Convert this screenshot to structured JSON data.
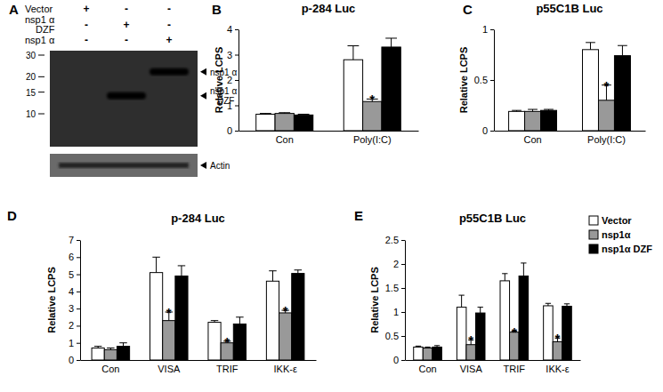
{
  "blot": {
    "panel": "A",
    "conditions": [
      {
        "label": [
          "Vector"
        ],
        "lanes": [
          "+",
          "-",
          "-"
        ]
      },
      {
        "label": [
          "nsp1 α",
          "DZF"
        ],
        "lanes": [
          "-",
          "+",
          "-"
        ]
      },
      {
        "label": [
          "nsp1 α"
        ],
        "lanes": [
          "-",
          "-",
          "+"
        ]
      }
    ],
    "markers": [
      30,
      20,
      15,
      10
    ],
    "bands": [
      {
        "label": [
          "nsp1 α"
        ],
        "lane": 2,
        "kda": 22
      },
      {
        "label": [
          "nsp1 α",
          "DZF"
        ],
        "lane": 1,
        "kda": 14
      }
    ],
    "loading": {
      "label": "Actin"
    }
  },
  "chart_data": [
    {
      "type": "bar",
      "panel": "B",
      "title": "p-284 Luc",
      "ylabel": "Relative LCPS",
      "categories": [
        "Con",
        "Poly(I:C)"
      ],
      "ylim": [
        0,
        4
      ],
      "yticks": [
        0,
        1,
        2,
        3,
        4
      ],
      "series": [
        {
          "color": "#ffffff",
          "values": [
            0.65,
            2.8
          ],
          "errors": [
            0.03,
            0.55
          ],
          "annotations": [
            null,
            null
          ]
        },
        {
          "color": "#999999",
          "values": [
            0.68,
            1.15
          ],
          "errors": [
            0.03,
            0.1
          ],
          "annotations": [
            null,
            "*"
          ]
        },
        {
          "color": "#000000",
          "values": [
            0.62,
            3.3
          ],
          "errors": [
            0.03,
            0.35
          ],
          "annotations": [
            null,
            null
          ]
        }
      ]
    },
    {
      "type": "bar",
      "panel": "C",
      "title": "p55C1B Luc",
      "ylabel": "Relative LCPS",
      "categories": [
        "Con",
        "Poly(I:C)"
      ],
      "ylim": [
        0,
        1
      ],
      "yticks": [
        0,
        0.5,
        1
      ],
      "series": [
        {
          "color": "#ffffff",
          "values": [
            0.19,
            0.8
          ],
          "errors": [
            0.01,
            0.07
          ],
          "annotations": [
            null,
            null
          ]
        },
        {
          "color": "#999999",
          "values": [
            0.19,
            0.3
          ],
          "errors": [
            0.02,
            0.15
          ],
          "annotations": [
            null,
            "*"
          ]
        },
        {
          "color": "#000000",
          "values": [
            0.2,
            0.74
          ],
          "errors": [
            0.01,
            0.1
          ],
          "annotations": [
            null,
            null
          ]
        }
      ]
    },
    {
      "type": "bar",
      "panel": "D",
      "title": "p-284 Luc",
      "ylabel": "Relative LCPS",
      "categories": [
        "Con",
        "VISA",
        "TRIF",
        "IKK-ε"
      ],
      "ylim": [
        0,
        7
      ],
      "yticks": [
        0,
        1,
        2,
        3,
        4,
        5,
        6,
        7
      ],
      "series": [
        {
          "color": "#ffffff",
          "values": [
            0.7,
            5.1,
            2.2,
            4.6
          ],
          "errors": [
            0.1,
            0.9,
            0.1,
            0.6
          ],
          "annotations": [
            null,
            null,
            null,
            null
          ]
        },
        {
          "color": "#999999",
          "values": [
            0.6,
            2.3,
            1.0,
            2.75
          ],
          "errors": [
            0.1,
            0.5,
            0.1,
            0.15
          ],
          "annotations": [
            null,
            "*",
            "*",
            "*"
          ]
        },
        {
          "color": "#000000",
          "values": [
            0.8,
            4.9,
            2.1,
            5.05
          ],
          "errors": [
            0.2,
            0.6,
            0.4,
            0.2
          ],
          "annotations": [
            null,
            null,
            null,
            null
          ]
        }
      ]
    },
    {
      "type": "bar",
      "panel": "E",
      "title": "p55C1B Luc",
      "ylabel": "Relative LCPS",
      "categories": [
        "Con",
        "VISA",
        "TRIF",
        "IKK-ε"
      ],
      "ylim": [
        0,
        2.5
      ],
      "yticks": [
        0,
        0.5,
        1,
        1.5,
        2,
        2.5
      ],
      "legend": "top-right",
      "series": [
        {
          "name": "Vector",
          "color": "#ffffff",
          "values": [
            0.27,
            1.1,
            1.65,
            1.13
          ],
          "errors": [
            0.02,
            0.25,
            0.15,
            0.05
          ],
          "annotations": [
            null,
            null,
            null,
            null
          ]
        },
        {
          "name": "nsp1α",
          "color": "#999999",
          "values": [
            0.25,
            0.32,
            0.58,
            0.38
          ],
          "errors": [
            0.02,
            0.1,
            0.02,
            0.08
          ],
          "annotations": [
            null,
            "*",
            "*",
            "*"
          ]
        },
        {
          "name": "nsp1α DZF",
          "color": "#000000",
          "values": [
            0.27,
            0.98,
            1.75,
            1.12
          ],
          "errors": [
            0.03,
            0.12,
            0.27,
            0.05
          ],
          "annotations": [
            null,
            null,
            null,
            null
          ]
        }
      ]
    }
  ]
}
